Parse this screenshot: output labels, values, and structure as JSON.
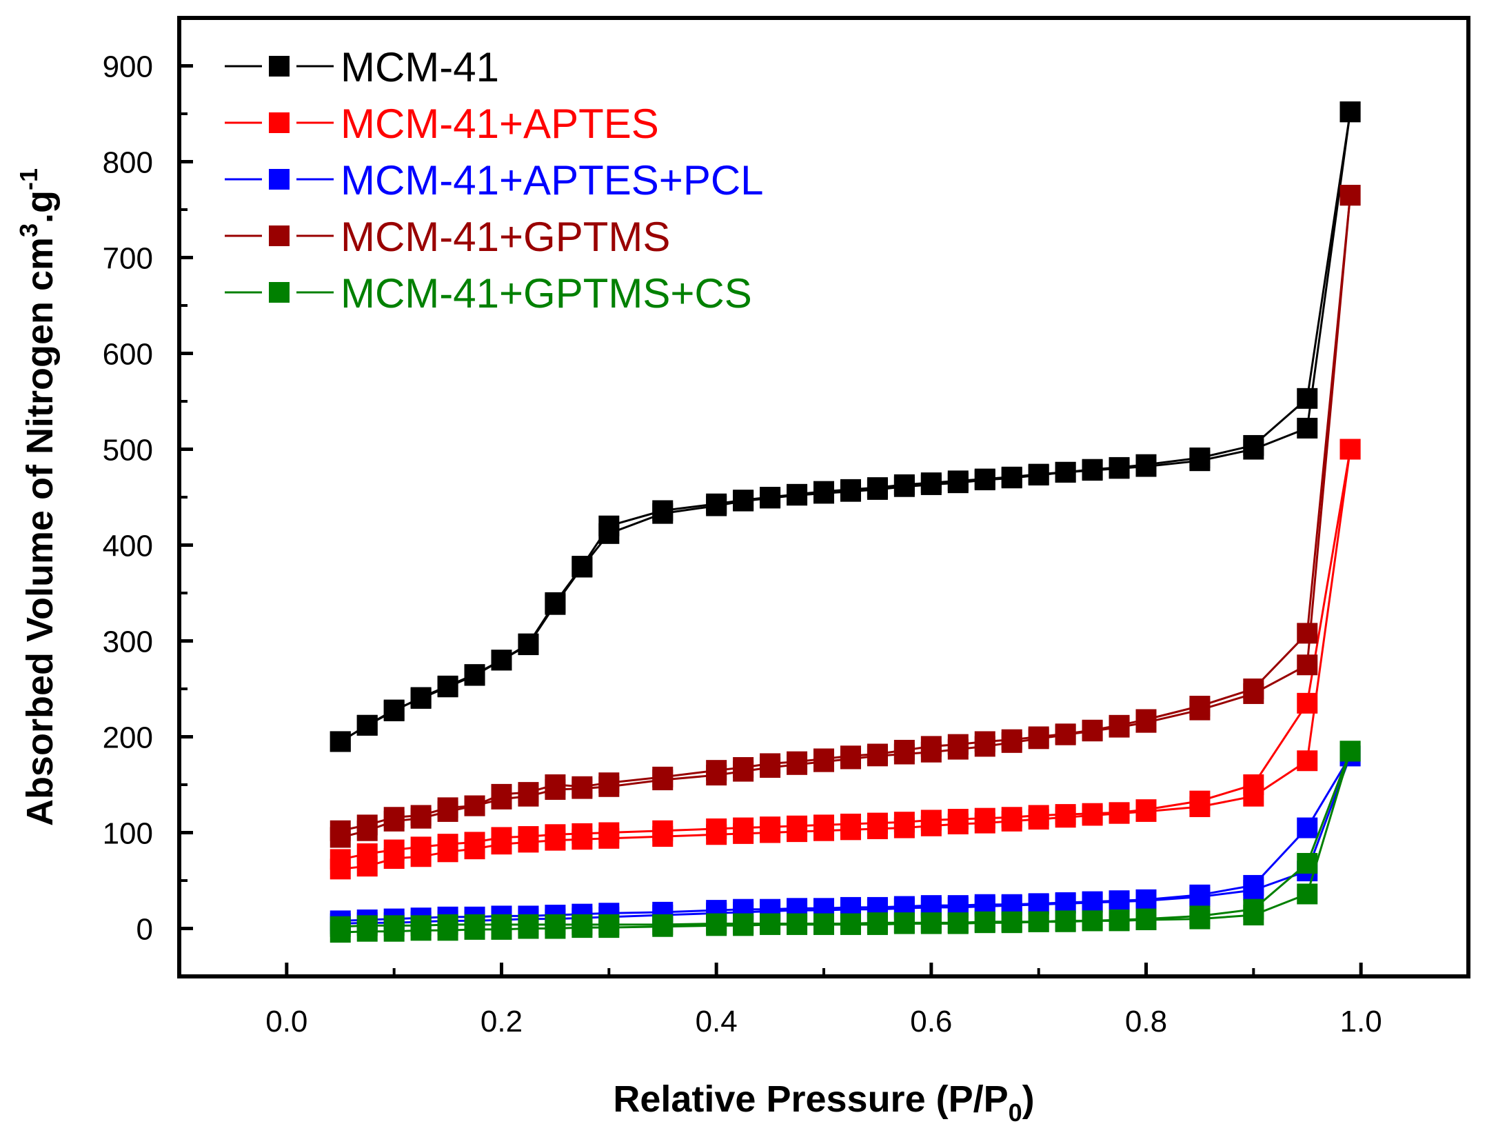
{
  "chart_data": {
    "type": "line",
    "xlabel": {
      "main": "Relative Pressure (P/P",
      "sub": "0",
      "close": ")"
    },
    "ylabel": {
      "main": "Absorbed Volume of Nitrogen cm",
      "sup1": "3",
      "mid": ".g",
      "sup2": "-1"
    },
    "xlim": [
      -0.1,
      1.1
    ],
    "ylim": [
      -50,
      950
    ],
    "xticks": [
      0.0,
      0.2,
      0.4,
      0.6,
      0.8,
      1.0
    ],
    "xtick_labels": [
      "0.0",
      "0.2",
      "0.4",
      "0.6",
      "0.8",
      "1.0"
    ],
    "yticks": [
      0,
      100,
      200,
      300,
      400,
      500,
      600,
      700,
      800,
      900
    ],
    "ytick_labels": [
      "0",
      "100",
      "200",
      "300",
      "400",
      "500",
      "600",
      "700",
      "800",
      "900"
    ],
    "grid": false,
    "legend_position": "top-left",
    "marker": "square",
    "series": [
      {
        "name": "MCM-41",
        "color": "#000000",
        "adsorption": {
          "x": [
            0.05,
            0.075,
            0.1,
            0.125,
            0.15,
            0.175,
            0.2,
            0.225,
            0.25,
            0.275,
            0.3,
            0.35,
            0.4,
            0.425,
            0.45,
            0.475,
            0.5,
            0.525,
            0.55,
            0.575,
            0.6,
            0.625,
            0.65,
            0.675,
            0.7,
            0.725,
            0.75,
            0.775,
            0.8,
            0.85,
            0.9,
            0.95,
            0.99
          ],
          "y": [
            195,
            212,
            227,
            241,
            253,
            265,
            280,
            297,
            340,
            378,
            420,
            436,
            443,
            447,
            450,
            453,
            456,
            458,
            460,
            463,
            465,
            467,
            469,
            471,
            474,
            476,
            479,
            481,
            484,
            491,
            504,
            553,
            852
          ]
        },
        "desorption": {
          "x": [
            0.99,
            0.95,
            0.9,
            0.85,
            0.8,
            0.775,
            0.75,
            0.725,
            0.7,
            0.675,
            0.65,
            0.625,
            0.6,
            0.575,
            0.55,
            0.525,
            0.5,
            0.475,
            0.45,
            0.425,
            0.4,
            0.35,
            0.3,
            0.275,
            0.25,
            0.225,
            0.2,
            0.175,
            0.15,
            0.125,
            0.1,
            0.075,
            0.05
          ],
          "y": [
            852,
            522,
            500,
            488,
            482,
            480,
            478,
            476,
            473,
            470,
            468,
            465,
            463,
            461,
            458,
            456,
            454,
            452,
            449,
            446,
            441,
            433,
            412,
            377,
            338,
            296,
            280,
            264,
            252,
            240,
            228,
            212,
            195
          ]
        }
      },
      {
        "name": "MCM-41+APTES",
        "color": "#ff0000",
        "adsorption": {
          "x": [
            0.05,
            0.075,
            0.1,
            0.125,
            0.15,
            0.175,
            0.2,
            0.225,
            0.25,
            0.275,
            0.3,
            0.35,
            0.4,
            0.425,
            0.45,
            0.475,
            0.5,
            0.525,
            0.55,
            0.575,
            0.6,
            0.625,
            0.65,
            0.675,
            0.7,
            0.725,
            0.75,
            0.775,
            0.8,
            0.85,
            0.9,
            0.95,
            0.99
          ],
          "y": [
            72,
            78,
            82,
            85,
            88,
            90,
            95,
            96,
            98,
            99,
            100,
            102,
            104,
            105,
            106,
            107,
            108,
            109,
            110,
            111,
            113,
            114,
            115,
            116,
            118,
            119,
            120,
            121,
            124,
            133,
            150,
            235,
            500
          ]
        },
        "desorption": {
          "x": [
            0.99,
            0.95,
            0.9,
            0.85,
            0.8,
            0.775,
            0.75,
            0.725,
            0.7,
            0.675,
            0.65,
            0.625,
            0.6,
            0.575,
            0.55,
            0.525,
            0.5,
            0.475,
            0.45,
            0.425,
            0.4,
            0.35,
            0.3,
            0.275,
            0.25,
            0.225,
            0.2,
            0.175,
            0.15,
            0.125,
            0.1,
            0.075,
            0.05
          ],
          "y": [
            500,
            175,
            138,
            127,
            122,
            120,
            118,
            116,
            114,
            112,
            110,
            109,
            107,
            105,
            104,
            103,
            102,
            101,
            100,
            99,
            98,
            96,
            94,
            93,
            92,
            90,
            88,
            83,
            80,
            75,
            73,
            65,
            62
          ]
        }
      },
      {
        "name": "MCM-41+APTES+PCL",
        "color": "#0000ff",
        "adsorption": {
          "x": [
            0.05,
            0.075,
            0.1,
            0.125,
            0.15,
            0.175,
            0.2,
            0.225,
            0.25,
            0.275,
            0.3,
            0.35,
            0.4,
            0.425,
            0.45,
            0.475,
            0.5,
            0.525,
            0.55,
            0.575,
            0.6,
            0.625,
            0.65,
            0.675,
            0.7,
            0.725,
            0.75,
            0.775,
            0.8,
            0.85,
            0.9,
            0.95,
            0.99
          ],
          "y": [
            8,
            9,
            10,
            11,
            12,
            12,
            13,
            13,
            14,
            15,
            16,
            17,
            19,
            20,
            20,
            21,
            21,
            22,
            22,
            23,
            24,
            24,
            25,
            25,
            26,
            27,
            28,
            29,
            30,
            35,
            45,
            105,
            180
          ]
        },
        "desorption": {
          "x": [
            0.99,
            0.95,
            0.9,
            0.85,
            0.8,
            0.775,
            0.75,
            0.725,
            0.7,
            0.675,
            0.65,
            0.625,
            0.6,
            0.575,
            0.55,
            0.525,
            0.5,
            0.475,
            0.45,
            0.425,
            0.4,
            0.35,
            0.3,
            0.275,
            0.25,
            0.225,
            0.2,
            0.175,
            0.15,
            0.125,
            0.1,
            0.075,
            0.05
          ],
          "y": [
            180,
            60,
            40,
            33,
            29,
            28,
            27,
            26,
            25,
            24,
            23,
            22,
            22,
            21,
            20,
            20,
            19,
            19,
            18,
            17,
            16,
            14,
            12,
            11,
            10,
            10,
            9,
            8,
            8,
            7,
            6,
            6,
            5
          ]
        }
      },
      {
        "name": "MCM-41+GPTMS",
        "color": "#990000",
        "adsorption": {
          "x": [
            0.05,
            0.075,
            0.1,
            0.125,
            0.15,
            0.175,
            0.2,
            0.225,
            0.25,
            0.275,
            0.3,
            0.35,
            0.4,
            0.425,
            0.45,
            0.475,
            0.5,
            0.525,
            0.55,
            0.575,
            0.6,
            0.625,
            0.65,
            0.675,
            0.7,
            0.725,
            0.75,
            0.775,
            0.8,
            0.85,
            0.9,
            0.95,
            0.99
          ],
          "y": [
            102,
            108,
            116,
            118,
            126,
            128,
            140,
            142,
            150,
            148,
            152,
            158,
            165,
            168,
            172,
            174,
            177,
            180,
            182,
            186,
            190,
            192,
            195,
            197,
            200,
            203,
            207,
            212,
            218,
            232,
            250,
            308,
            765
          ]
        },
        "desorption": {
          "x": [
            0.99,
            0.95,
            0.9,
            0.85,
            0.8,
            0.775,
            0.75,
            0.725,
            0.7,
            0.675,
            0.65,
            0.625,
            0.6,
            0.575,
            0.55,
            0.525,
            0.5,
            0.475,
            0.45,
            0.425,
            0.4,
            0.35,
            0.3,
            0.275,
            0.25,
            0.225,
            0.2,
            0.175,
            0.15,
            0.125,
            0.1,
            0.075,
            0.05
          ],
          "y": [
            765,
            275,
            245,
            228,
            215,
            210,
            206,
            202,
            198,
            194,
            190,
            187,
            184,
            182,
            180,
            177,
            174,
            171,
            168,
            164,
            160,
            155,
            148,
            146,
            145,
            138,
            135,
            128,
            122,
            115,
            112,
            102,
            95
          ]
        }
      },
      {
        "name": "MCM-41+GPTMS+CS",
        "color": "#008000",
        "adsorption": {
          "x": [
            0.05,
            0.075,
            0.1,
            0.125,
            0.15,
            0.175,
            0.2,
            0.225,
            0.25,
            0.275,
            0.3,
            0.35,
            0.4,
            0.425,
            0.45,
            0.475,
            0.5,
            0.525,
            0.55,
            0.575,
            0.6,
            0.625,
            0.65,
            0.675,
            0.7,
            0.725,
            0.75,
            0.775,
            0.8,
            0.85,
            0.9,
            0.95,
            0.99
          ],
          "y": [
            2,
            3,
            3,
            3,
            4,
            4,
            4,
            4,
            4,
            4,
            4,
            4,
            5,
            5,
            5,
            5,
            5,
            5,
            6,
            6,
            6,
            6,
            7,
            7,
            7,
            8,
            8,
            9,
            10,
            13,
            20,
            68,
            185
          ]
        },
        "desorption": {
          "x": [
            0.99,
            0.95,
            0.9,
            0.85,
            0.8,
            0.775,
            0.75,
            0.725,
            0.7,
            0.675,
            0.65,
            0.625,
            0.6,
            0.575,
            0.55,
            0.525,
            0.5,
            0.475,
            0.45,
            0.425,
            0.4,
            0.35,
            0.3,
            0.275,
            0.25,
            0.225,
            0.2,
            0.175,
            0.15,
            0.125,
            0.1,
            0.075,
            0.05
          ],
          "y": [
            185,
            36,
            14,
            10,
            9,
            8,
            8,
            7,
            7,
            6,
            6,
            5,
            5,
            5,
            4,
            4,
            4,
            4,
            4,
            3,
            3,
            2,
            1,
            1,
            0,
            0,
            -1,
            -1,
            -2,
            -2,
            -3,
            -3,
            -4
          ]
        }
      }
    ]
  }
}
